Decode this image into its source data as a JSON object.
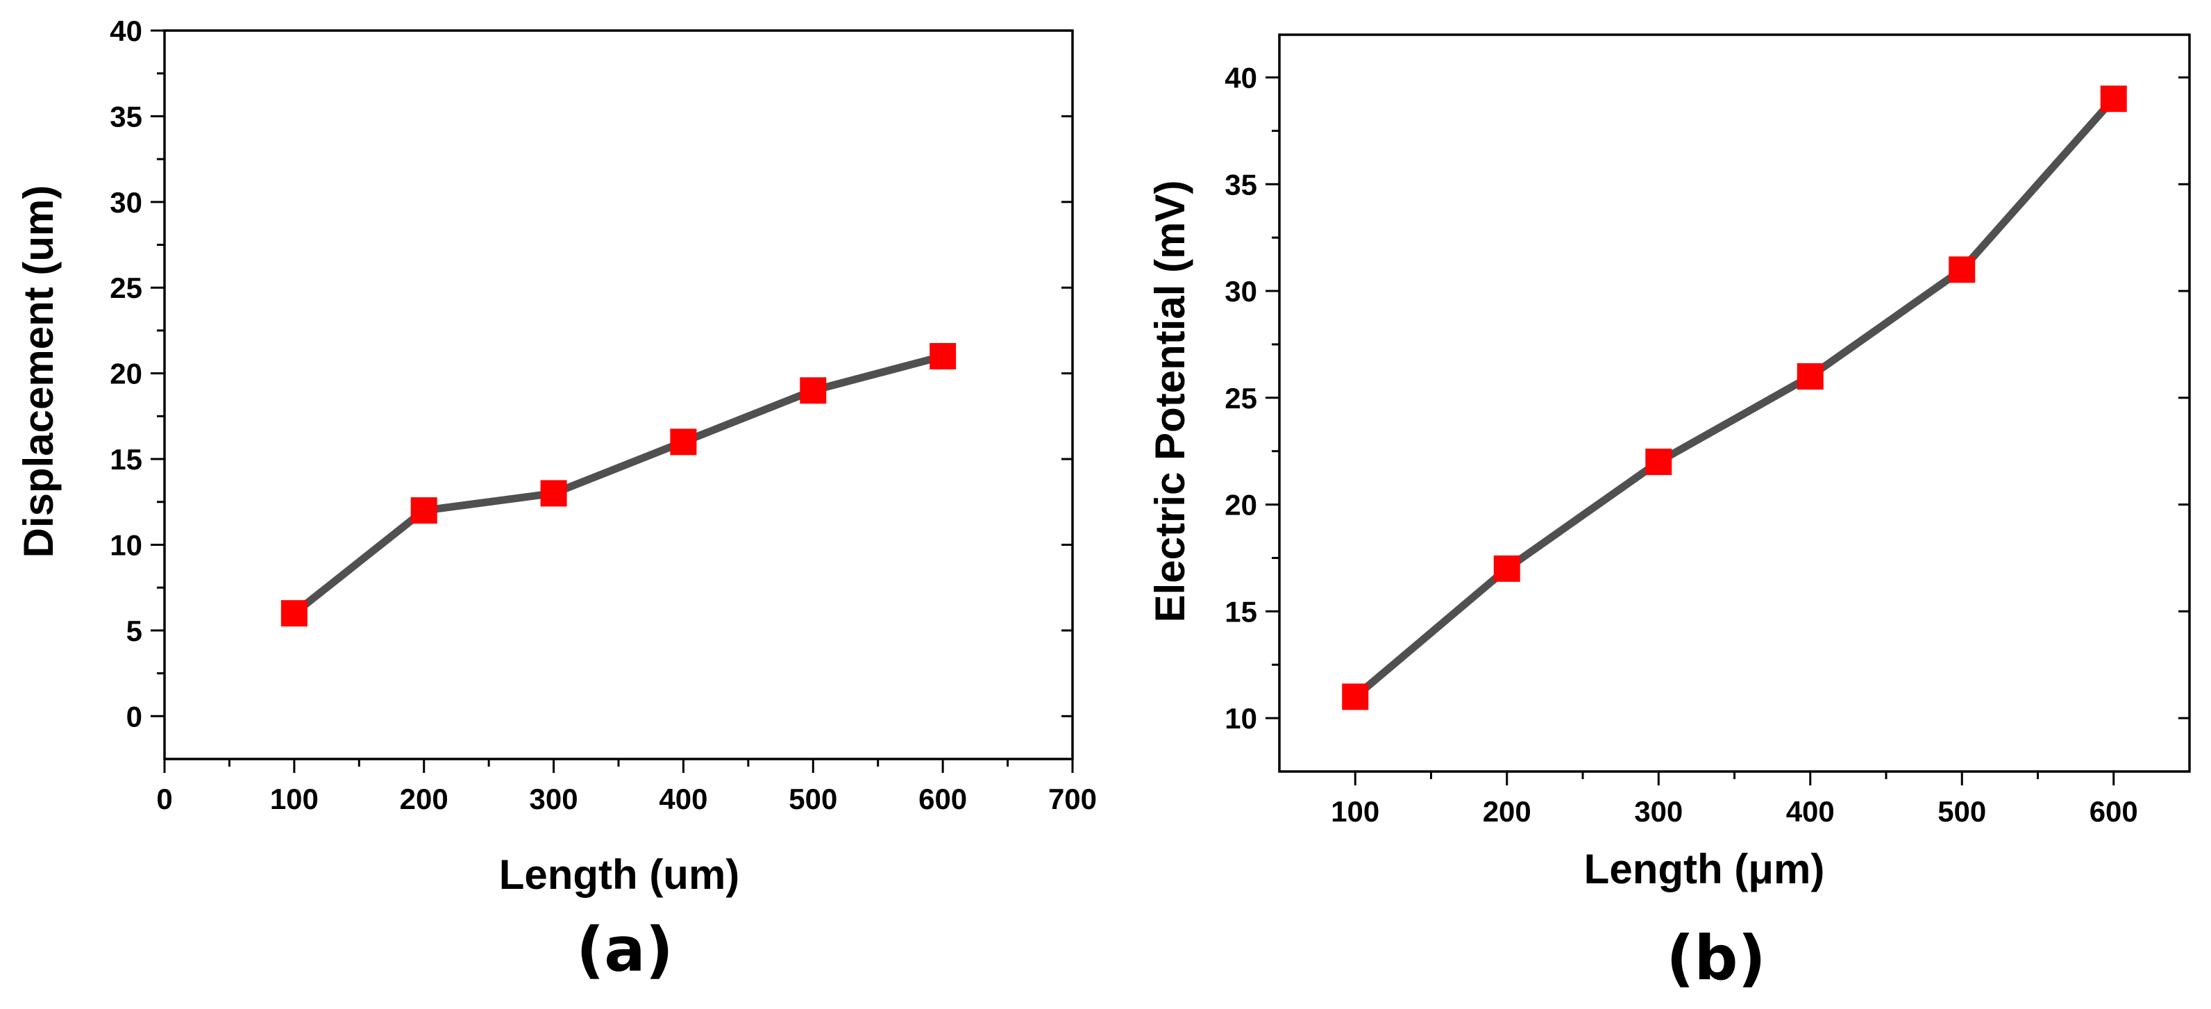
{
  "chart_data": [
    {
      "type": "line",
      "panel_label": "(a)",
      "xlabel": "Length (um)",
      "ylabel": "Displacement (um)",
      "xlim": [
        0,
        700
      ],
      "ylim": [
        -2.5,
        40
      ],
      "xticks": [
        0,
        100,
        200,
        300,
        400,
        500,
        600,
        700
      ],
      "yticks": [
        0,
        5,
        10,
        15,
        20,
        25,
        30,
        35,
        40
      ],
      "series": [
        {
          "name": "Displacement",
          "x": [
            100,
            200,
            300,
            400,
            500,
            600
          ],
          "y": [
            6,
            12,
            13,
            16,
            19,
            21
          ]
        }
      ],
      "grid": false,
      "line_color": "#505050",
      "marker_color": "#ff0000",
      "marker": "square"
    },
    {
      "type": "line",
      "panel_label": "(b)",
      "xlabel": "Length (μm)",
      "ylabel": "Electric Potential (mV)",
      "xlim": [
        50,
        650
      ],
      "ylim": [
        7.5,
        42
      ],
      "xticks": [
        100,
        200,
        300,
        400,
        500,
        600
      ],
      "yticks": [
        10,
        15,
        20,
        25,
        30,
        35,
        40
      ],
      "series": [
        {
          "name": "Electric Potential",
          "x": [
            100,
            200,
            300,
            400,
            500,
            600
          ],
          "y": [
            11,
            17,
            22,
            26,
            31,
            39
          ]
        }
      ],
      "grid": false,
      "line_color": "#505050",
      "marker_color": "#ff0000",
      "marker": "square"
    }
  ]
}
